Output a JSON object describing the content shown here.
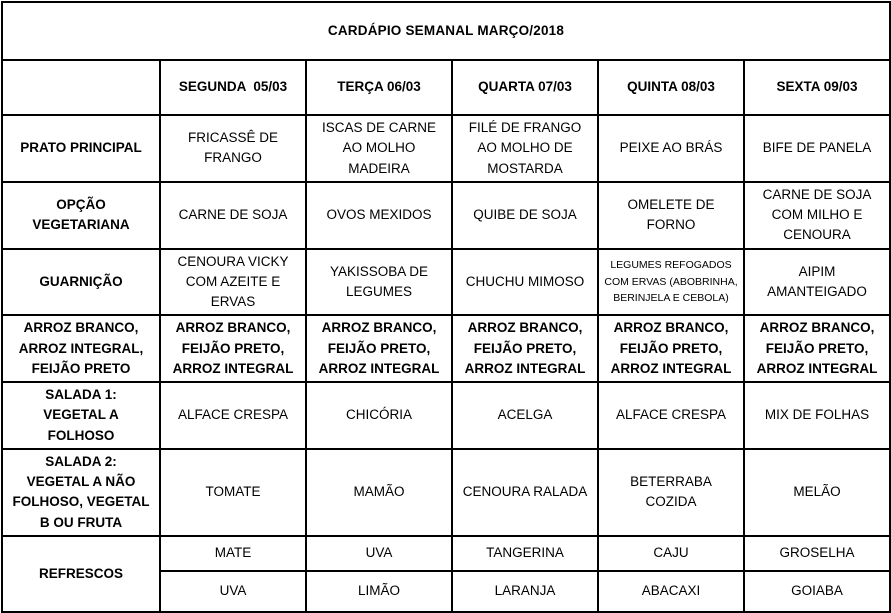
{
  "title": "CARDÁPIO SEMANAL MARÇO/2018",
  "header": {
    "days": [
      "SEGUNDA  05/03",
      "TERÇA 06/03",
      "QUARTA 07/03",
      "QUINTA 08/03",
      "SEXTA 09/03"
    ]
  },
  "rows": [
    {
      "label": "PRATO PRINCIPAL",
      "cells": [
        "FRICASSÊ DE FRANGO",
        "ISCAS DE CARNE AO MOLHO MADEIRA",
        "FILÉ DE FRANGO AO MOLHO DE MOSTARDA",
        "PEIXE AO BRÁS",
        "BIFE DE PANELA"
      ]
    },
    {
      "label": "OPÇÃO VEGETARIANA",
      "cells": [
        "CARNE DE SOJA",
        "OVOS MEXIDOS",
        "QUIBE DE SOJA",
        "OMELETE DE FORNO",
        "CARNE DE SOJA COM MILHO E  CENOURA"
      ]
    },
    {
      "label": "GUARNIÇÃO",
      "cells": [
        "CENOURA VICKY COM AZEITE E ERVAS",
        "YAKISSOBA DE LEGUMES",
        "CHUCHU MIMOSO",
        "LEGUMES REFOGADOS COM ERVAS (ABOBRINHA, BERINJELA E CEBOLA)",
        "AIPIM AMANTEIGADO"
      ]
    },
    {
      "label": "ARROZ BRANCO, ARROZ INTEGRAL, FEIJÃO PRETO",
      "cells": [
        "ARROZ BRANCO, FEIJÃO PRETO, ARROZ INTEGRAL",
        "ARROZ BRANCO, FEIJÃO PRETO, ARROZ INTEGRAL",
        "ARROZ BRANCO, FEIJÃO PRETO, ARROZ INTEGRAL",
        "ARROZ BRANCO, FEIJÃO PRETO, ARROZ INTEGRAL",
        "ARROZ BRANCO, FEIJÃO PRETO, ARROZ INTEGRAL"
      ]
    },
    {
      "label": "SALADA 1:\nVEGETAL A FOLHOSO",
      "cells": [
        "ALFACE CRESPA",
        "CHICÓRIA",
        "ACELGA",
        "ALFACE CRESPA",
        "MIX DE FOLHAS"
      ]
    },
    {
      "label": "SALADA 2:\nVEGETAL A NÃO FOLHOSO, VEGETAL B OU FRUTA",
      "cells": [
        "TOMATE",
        "MAMÃO",
        "CENOURA RALADA",
        "BETERRABA COZIDA",
        "MELÃO"
      ]
    },
    {
      "label": "REFRESCOS",
      "cells": [
        "MATE",
        "UVA",
        "TANGERINA",
        "CAJU",
        "GROSELHA"
      ],
      "cells2": [
        "UVA",
        "LIMÃO",
        "LARANJA",
        "ABACAXI",
        "GOIABA"
      ]
    }
  ],
  "colors": {
    "text": "#000000",
    "border": "#000000",
    "background": "#ffffff"
  }
}
